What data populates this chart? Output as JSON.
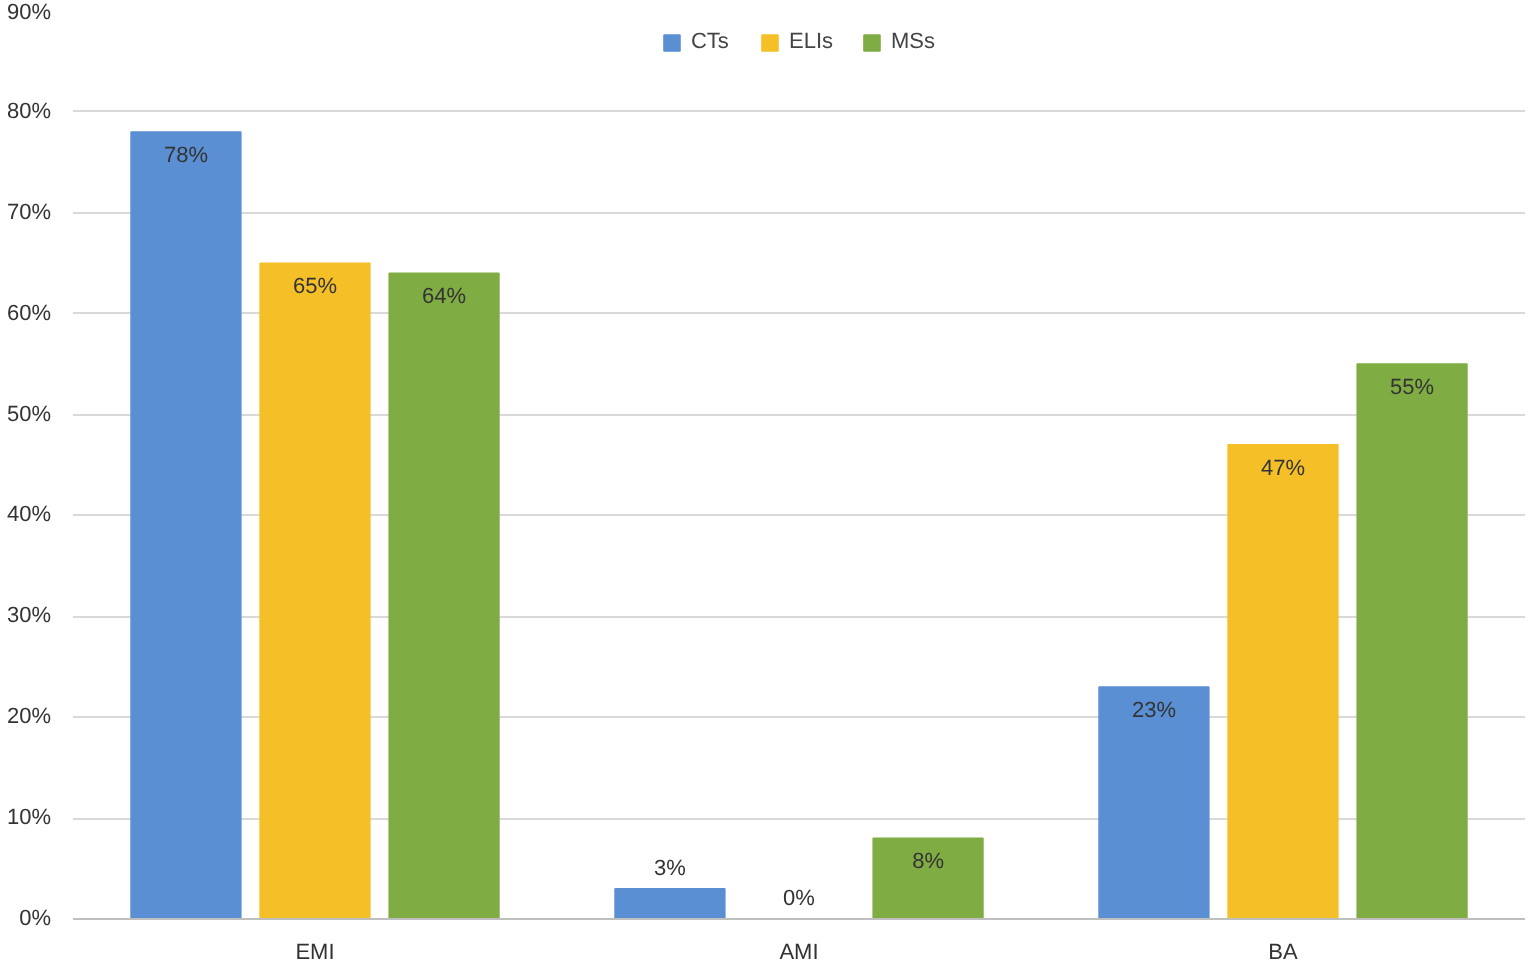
{
  "chart_data": {
    "type": "bar",
    "categories": [
      "EMI",
      "AMI",
      "BA"
    ],
    "series": [
      {
        "name": "CTs",
        "color": "#5b8fd3",
        "values": [
          78,
          3,
          23
        ],
        "value_labels": [
          "78%",
          "3%",
          "23%"
        ]
      },
      {
        "name": "ELIs",
        "color": "#f5c027",
        "values": [
          65,
          0,
          47
        ],
        "value_labels": [
          "65%",
          "0%",
          "47%"
        ]
      },
      {
        "name": "MSs",
        "color": "#80ac44",
        "values": [
          64,
          8,
          55
        ],
        "value_labels": [
          "64%",
          "8%",
          "55%"
        ]
      }
    ],
    "ylim": [
      0,
      90
    ],
    "yticks": [
      {
        "value": 0,
        "label": "0%"
      },
      {
        "value": 10,
        "label": "10%"
      },
      {
        "value": 20,
        "label": "20%"
      },
      {
        "value": 30,
        "label": "30%"
      },
      {
        "value": 40,
        "label": "40%"
      },
      {
        "value": 50,
        "label": "50%"
      },
      {
        "value": 60,
        "label": "60%"
      },
      {
        "value": 70,
        "label": "70%"
      },
      {
        "value": 80,
        "label": "80%"
      },
      {
        "value": 90,
        "label": "90%"
      }
    ],
    "grid": "y",
    "legend": "top"
  }
}
